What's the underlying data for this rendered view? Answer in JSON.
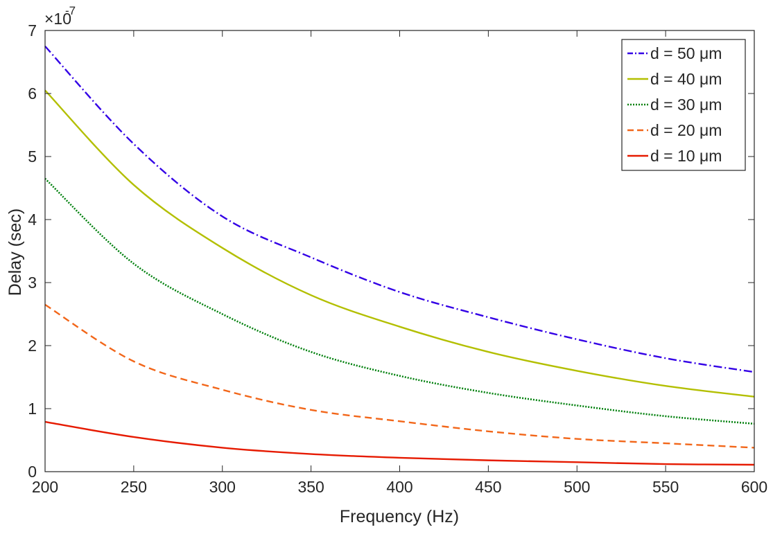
{
  "chart_data": {
    "type": "line",
    "title": "",
    "xlabel": "Frequency (Hz)",
    "ylabel": "Delay (sec)",
    "y_exponent_label": "×10",
    "y_exponent_power": "-7",
    "xlim": [
      200,
      600
    ],
    "ylim": [
      0,
      7
    ],
    "y_scale_factor": 1e-07,
    "xticks": [
      200,
      250,
      300,
      350,
      400,
      450,
      500,
      550,
      600
    ],
    "yticks": [
      0,
      1,
      2,
      3,
      4,
      5,
      6,
      7
    ],
    "grid": false,
    "legend_position": "top-right",
    "x": [
      200,
      250,
      300,
      350,
      400,
      450,
      500,
      550,
      600
    ],
    "series": [
      {
        "name": "d = 50 μm",
        "color": "#3300e6",
        "style": "dashdot",
        "values": [
          6.75,
          5.2,
          4.05,
          3.4,
          2.85,
          2.45,
          2.1,
          1.8,
          1.58
        ]
      },
      {
        "name": "d = 40 μm",
        "color": "#b3bf00",
        "style": "solid",
        "values": [
          6.05,
          4.55,
          3.55,
          2.8,
          2.3,
          1.9,
          1.6,
          1.36,
          1.19
        ]
      },
      {
        "name": "d = 30 μm",
        "color": "#00800d",
        "style": "dotted",
        "values": [
          4.65,
          3.3,
          2.5,
          1.9,
          1.52,
          1.25,
          1.05,
          0.88,
          0.76
        ]
      },
      {
        "name": "d = 20 μm",
        "color": "#f26619",
        "style": "dashed",
        "values": [
          2.65,
          1.75,
          1.3,
          0.98,
          0.8,
          0.64,
          0.52,
          0.45,
          0.38
        ]
      },
      {
        "name": "d = 10 μm",
        "color": "#e61a00",
        "style": "solid",
        "values": [
          0.79,
          0.55,
          0.38,
          0.28,
          0.22,
          0.18,
          0.15,
          0.12,
          0.11
        ]
      }
    ]
  }
}
